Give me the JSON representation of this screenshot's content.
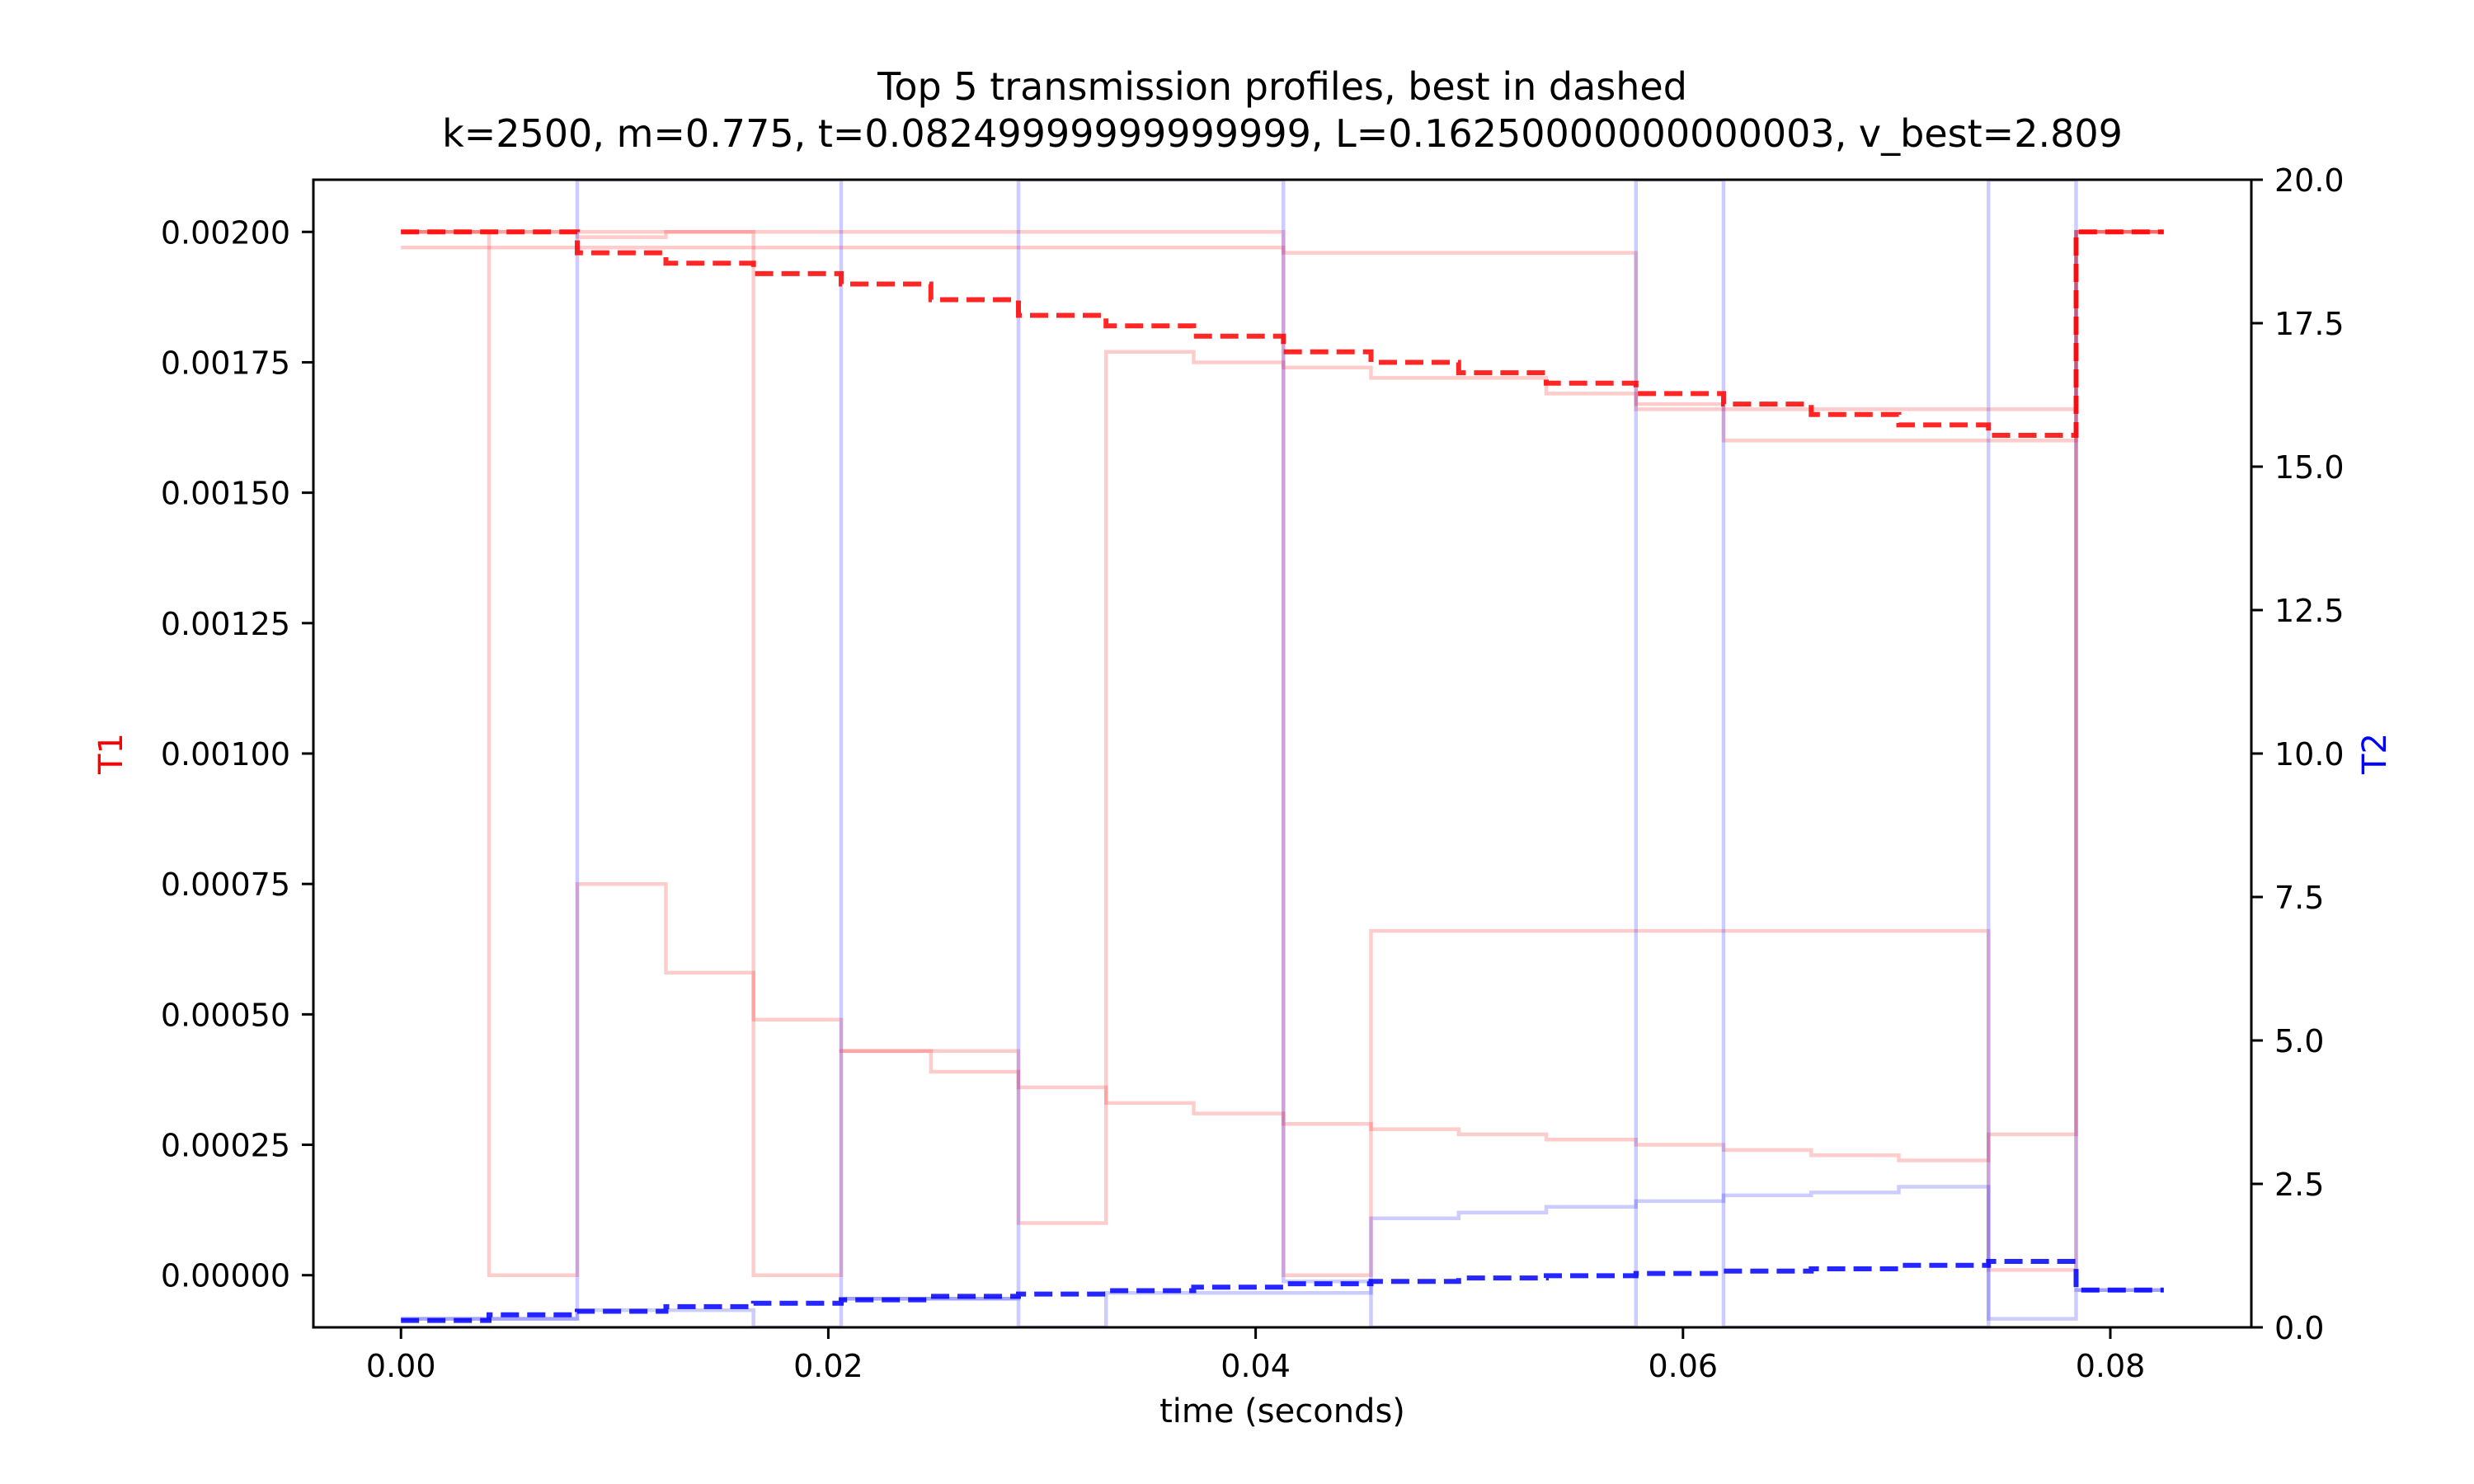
{
  "chart_data": {
    "type": "line",
    "title": "Top 5 transmission profiles, best in dashed",
    "subtitle": "k=2500, m=0.775, t=0.08249999999999999, L=0.16250000000000003, v_best=2.809",
    "xlabel": "time (seconds)",
    "ylabel_left": "T1",
    "ylabel_right": "T2",
    "xlim": [
      -0.0041,
      0.0866
    ],
    "ylim_left": [
      -0.0001,
      0.0021
    ],
    "ylim_right": [
      0,
      20
    ],
    "x_ticks": [
      0.0,
      0.02,
      0.04,
      0.06,
      0.08
    ],
    "x_tick_labels": [
      "0.00",
      "0.02",
      "0.04",
      "0.06",
      "0.08"
    ],
    "y_left_ticks": [
      0.0,
      0.00025,
      0.0005,
      0.00075,
      0.001,
      0.00125,
      0.0015,
      0.00175,
      0.002
    ],
    "y_left_tick_labels": [
      "0.00000",
      "0.00025",
      "0.00050",
      "0.00075",
      "0.00100",
      "0.00125",
      "0.00150",
      "0.00175",
      "0.00200"
    ],
    "y_right_ticks": [
      0,
      2.5,
      5,
      7.5,
      10,
      12.5,
      15,
      17.5,
      20
    ],
    "y_right_tick_labels": [
      "0.0",
      "2.5",
      "5.0",
      "7.5",
      "10.0",
      "12.5",
      "15.0",
      "17.5",
      "20.0"
    ],
    "grid": false,
    "colors": {
      "T1": "#ff0000",
      "T2": "#0000ff"
    },
    "series": [
      {
        "axis": "T1",
        "style": "faint",
        "x": [
          0,
          0.00412,
          0.00412,
          0.00825,
          0.00825,
          0.0124,
          0.0124,
          0.0165,
          0.0165,
          0.0206,
          0.0206,
          0.0248,
          0.0248,
          0.0289,
          0.0289,
          0.033,
          0.033,
          0.0371,
          0.0371,
          0.0413,
          0.0413,
          0.0454,
          0.0454,
          0.0495,
          0.0495,
          0.0536,
          0.0536,
          0.0578,
          0.0578,
          0.0619,
          0.0619,
          0.066,
          0.066,
          0.0701,
          0.0701,
          0.0743,
          0.0743,
          0.0784,
          0.0784,
          0.0825
        ],
        "y": [
          0.002,
          0.002,
          0,
          0,
          0.00075,
          0.00075,
          0.00058,
          0.00058,
          0.00049,
          0.00049,
          0.00043,
          0.00043,
          0.00039,
          0.00039,
          0.00036,
          0.00036,
          0.00033,
          0.00033,
          0.00031,
          0.00031,
          0.00029,
          0.00029,
          0.00028,
          0.00028,
          0.00027,
          0.00027,
          0.00026,
          0.00026,
          0.00025,
          0.00025,
          0.00024,
          0.00024,
          0.00023,
          0.00023,
          0.00022,
          0.00022,
          0.00027,
          0.00027,
          0.002,
          0.002
        ]
      },
      {
        "axis": "T1",
        "style": "faint",
        "x": [
          0,
          0.00825,
          0.00825,
          0.0124,
          0.0124,
          0.0165,
          0.0165,
          0.0206,
          0.0206,
          0.0289,
          0.0289,
          0.033,
          0.033,
          0.0371,
          0.0371,
          0.0413,
          0.0413,
          0.0454,
          0.0454,
          0.0536,
          0.0536,
          0.0578,
          0.0578,
          0.0619,
          0.0619,
          0.0784,
          0.0784,
          0.0825
        ],
        "y": [
          0.002,
          0.002,
          0.00199,
          0.00199,
          0.002,
          0.002,
          0,
          0,
          0.00043,
          0.00043,
          0.0001,
          0.0001,
          0.00177,
          0.00177,
          0.00175,
          0.00175,
          0.00174,
          0.00174,
          0.00172,
          0.00172,
          0.00169,
          0.00169,
          0.00167,
          0.00167,
          0.0016,
          0.0016,
          0.002,
          0.002
        ]
      },
      {
        "axis": "T1",
        "style": "faint",
        "x": [
          0,
          0.0413,
          0.0413,
          0.0578,
          0.0578,
          0.0784,
          0.0784,
          0.0825
        ],
        "y": [
          0.002,
          0.002,
          0.00196,
          0.00196,
          0.00166,
          0.00166,
          0.002,
          0.002
        ]
      },
      {
        "axis": "T1",
        "style": "faint",
        "x": [
          0,
          0.0413,
          0.0413,
          0.0454,
          0.0454,
          0.0743,
          0.0743,
          0.0784,
          0.0784,
          0.0825
        ],
        "y": [
          0.00197,
          0.00197,
          0,
          0,
          0.00066,
          0.00066,
          1e-05,
          1e-05,
          0.002,
          0.002
        ]
      },
      {
        "axis": "T1",
        "style": "dashed",
        "x": [
          0,
          0.00412,
          0.00825,
          0.00825,
          0.0124,
          0.0124,
          0.0165,
          0.0165,
          0.0206,
          0.0206,
          0.0248,
          0.0248,
          0.0289,
          0.0289,
          0.033,
          0.033,
          0.0371,
          0.0371,
          0.0413,
          0.0413,
          0.0454,
          0.0454,
          0.0495,
          0.0495,
          0.0536,
          0.0536,
          0.0578,
          0.0578,
          0.0619,
          0.0619,
          0.066,
          0.066,
          0.0701,
          0.0701,
          0.0743,
          0.0743,
          0.0784,
          0.0784,
          0.0825
        ],
        "y": [
          0.002,
          0.002,
          0.002,
          0.00196,
          0.00196,
          0.00194,
          0.00194,
          0.00192,
          0.00192,
          0.0019,
          0.0019,
          0.00187,
          0.00187,
          0.00184,
          0.00184,
          0.00182,
          0.00182,
          0.0018,
          0.0018,
          0.00177,
          0.00177,
          0.00175,
          0.00175,
          0.00173,
          0.00173,
          0.00171,
          0.00171,
          0.00169,
          0.00169,
          0.00167,
          0.00167,
          0.00165,
          0.00165,
          0.00163,
          0.00163,
          0.00161,
          0.00161,
          0.002,
          0.002
        ]
      },
      {
        "axis": "T2",
        "style": "faint",
        "x": [
          0,
          0.00825,
          0.00825,
          0.0165,
          0.0165,
          0.0206,
          0.0206,
          0.0289,
          0.0289,
          0.033,
          0.033,
          0.0454,
          0.0454,
          0.0495,
          0.0495,
          0.0536,
          0.0536,
          0.0578,
          0.0578,
          0.0619,
          0.0619,
          0.066,
          0.066,
          0.0701,
          0.0701,
          0.0743,
          0.0743,
          0.0784,
          0.0784,
          0.0825
        ],
        "y": [
          0.15,
          0.15,
          0.3,
          0.3,
          0.0,
          0.0,
          0.5,
          0.5,
          0.0,
          0.0,
          0.6,
          0.6,
          1.9,
          1.9,
          2.0,
          2.0,
          2.1,
          2.1,
          2.2,
          2.2,
          2.3,
          2.3,
          2.35,
          2.35,
          2.45,
          2.45,
          0.15,
          0.15,
          0.65,
          0.65
        ]
      },
      {
        "axis": "T2",
        "style": "faint",
        "x": [
          0,
          0.00825,
          0.00825,
          0.0206,
          0.0206,
          0.0289,
          0.0289,
          0.0413,
          0.0413,
          0.0454,
          0.0454,
          0.0578,
          0.0578,
          0.0619,
          0.0619,
          0.0743,
          0.0743,
          0.0784,
          0.0784,
          0.0825
        ],
        "y": [
          0.15,
          0.15,
          20.0,
          20.0,
          0.5,
          0.5,
          20.0,
          20.0,
          0.8,
          0.8,
          0.0,
          0.0,
          20.0,
          20.0,
          0.0,
          0.0,
          20.0,
          20.0,
          0.65,
          0.65
        ]
      },
      {
        "axis": "T2",
        "style": "dashed",
        "x": [
          0,
          0.00412,
          0.00412,
          0.00825,
          0.00825,
          0.0124,
          0.0124,
          0.0165,
          0.0165,
          0.0206,
          0.0206,
          0.0248,
          0.0248,
          0.0289,
          0.0289,
          0.033,
          0.033,
          0.0371,
          0.0371,
          0.0413,
          0.0413,
          0.0454,
          0.0454,
          0.0495,
          0.0495,
          0.0536,
          0.0536,
          0.0578,
          0.0578,
          0.0619,
          0.0619,
          0.066,
          0.066,
          0.0701,
          0.0701,
          0.0743,
          0.0743,
          0.0784,
          0.0784,
          0.0825
        ],
        "y": [
          0.12,
          0.12,
          0.22,
          0.22,
          0.28,
          0.28,
          0.36,
          0.36,
          0.42,
          0.42,
          0.48,
          0.48,
          0.54,
          0.54,
          0.58,
          0.58,
          0.64,
          0.64,
          0.7,
          0.7,
          0.76,
          0.76,
          0.8,
          0.8,
          0.86,
          0.86,
          0.9,
          0.9,
          0.94,
          0.94,
          0.98,
          0.98,
          1.02,
          1.02,
          1.08,
          1.08,
          1.15,
          1.15,
          0.65,
          0.65
        ]
      }
    ]
  }
}
